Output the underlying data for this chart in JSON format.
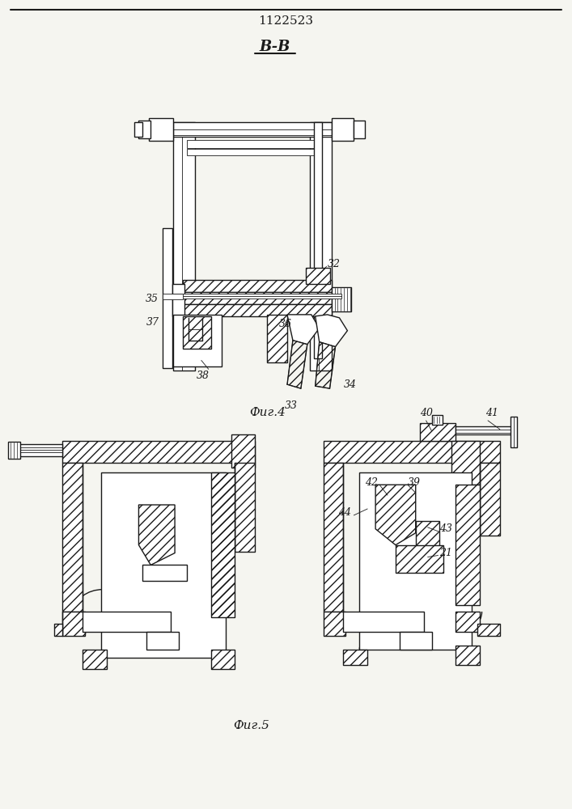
{
  "patent_number": "1122523",
  "view_label": "B-B",
  "fig4_label": "Фиг.4",
  "fig5_label": "Фиг.5",
  "bg_color": "#f5f5f0",
  "line_color": "#1a1a1a"
}
